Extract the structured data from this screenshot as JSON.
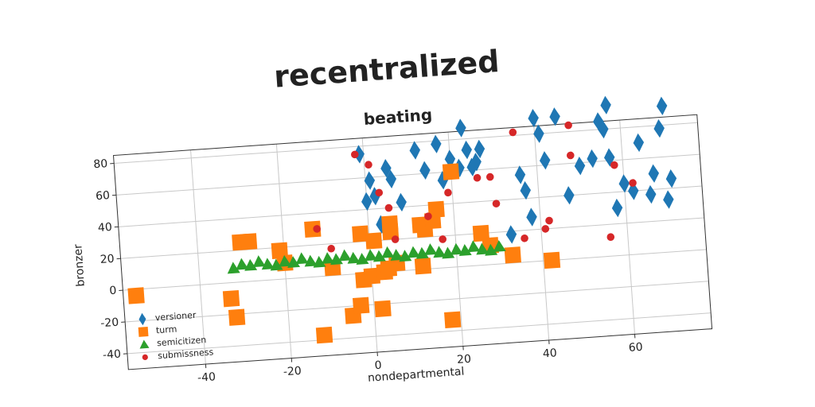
{
  "chart_data": {
    "type": "scatter",
    "suptitle": "recentralized",
    "title": "beating",
    "xlabel": "nondepartmental",
    "ylabel": "bronzer",
    "xlim": [
      -58,
      78
    ],
    "ylim": [
      -50,
      85
    ],
    "xticks": [
      -40,
      -20,
      0,
      20,
      40,
      60
    ],
    "yticks": [
      -40,
      -20,
      0,
      20,
      40,
      60,
      80
    ],
    "grid": true,
    "legend": "lower left",
    "series": [
      {
        "name": "versioner",
        "color": "#1f77b4",
        "marker": "diamond",
        "x": [
          -1,
          0,
          1,
          2,
          3,
          5,
          6,
          8,
          12,
          14,
          17,
          18,
          20,
          22,
          23,
          24,
          25,
          26,
          27,
          33,
          36,
          37,
          38,
          40,
          41,
          42,
          45,
          47,
          50,
          53,
          55,
          56,
          57,
          57,
          58,
          60,
          62,
          64,
          66,
          67,
          69,
          70,
          70,
          71
        ],
        "values": [
          75,
          45,
          58,
          48,
          30,
          65,
          58,
          43,
          75,
          62,
          78,
          55,
          68,
          62,
          87,
          73,
          62,
          65,
          73,
          18,
          55,
          45,
          28,
          90,
          80,
          63,
          90,
          40,
          58,
          62,
          85,
          80,
          95,
          62,
          30,
          45,
          40,
          70,
          37,
          50,
          78,
          92,
          33,
          46
        ]
      },
      {
        "name": "turm",
        "color": "#ff7f0e",
        "marker": "square",
        "x": [
          -55,
          -33,
          -32,
          -30,
          -28,
          -21,
          -20,
          -13,
          -12,
          -9,
          -5,
          -3,
          -2,
          -2,
          0,
          1,
          2,
          3,
          4,
          5,
          5,
          6,
          12,
          12,
          13,
          15,
          16,
          18,
          20,
          26,
          28,
          33,
          42
        ],
        "values": [
          -4,
          -10,
          -22,
          25,
          25,
          18,
          10,
          30,
          -37,
          5,
          -26,
          -20,
          -4,
          25,
          -2,
          20,
          -23,
          0,
          2,
          30,
          25,
          5,
          2,
          28,
          25,
          30,
          37,
          -33,
          60,
          20,
          12,
          5,
          0
        ]
      },
      {
        "name": "semicitizen",
        "color": "#2ca02c",
        "marker": "triangle",
        "x": [
          -32,
          -30,
          -28,
          -26,
          -24,
          -22,
          -20,
          -18,
          -16,
          -14,
          -12,
          -10,
          -8,
          -6,
          -4,
          -2,
          0,
          2,
          4,
          6,
          8,
          10,
          12,
          14,
          16,
          18,
          20,
          22,
          24,
          26,
          28,
          30
        ],
        "values": [
          9,
          11,
          10,
          12,
          10,
          9,
          11,
          10,
          12,
          10,
          9,
          11,
          10,
          12,
          10,
          9,
          11,
          10,
          12,
          10,
          9,
          11,
          10,
          12,
          10,
          9,
          11,
          10,
          12,
          10,
          9,
          11
        ]
      },
      {
        "name": "submissness",
        "color": "#d62728",
        "marker": "circle",
        "x": [
          -12,
          -9,
          -2,
          1,
          3,
          5,
          6,
          14,
          17,
          19,
          26,
          29,
          30,
          35,
          36,
          41,
          42,
          48,
          48,
          56,
          58,
          62
        ],
        "values": [
          30,
          17,
          75,
          68,
          50,
          40,
          20,
          33,
          18,
          47,
          55,
          55,
          38,
          82,
          15,
          20,
          25,
          84,
          65,
          12,
          57,
          45
        ]
      }
    ]
  }
}
